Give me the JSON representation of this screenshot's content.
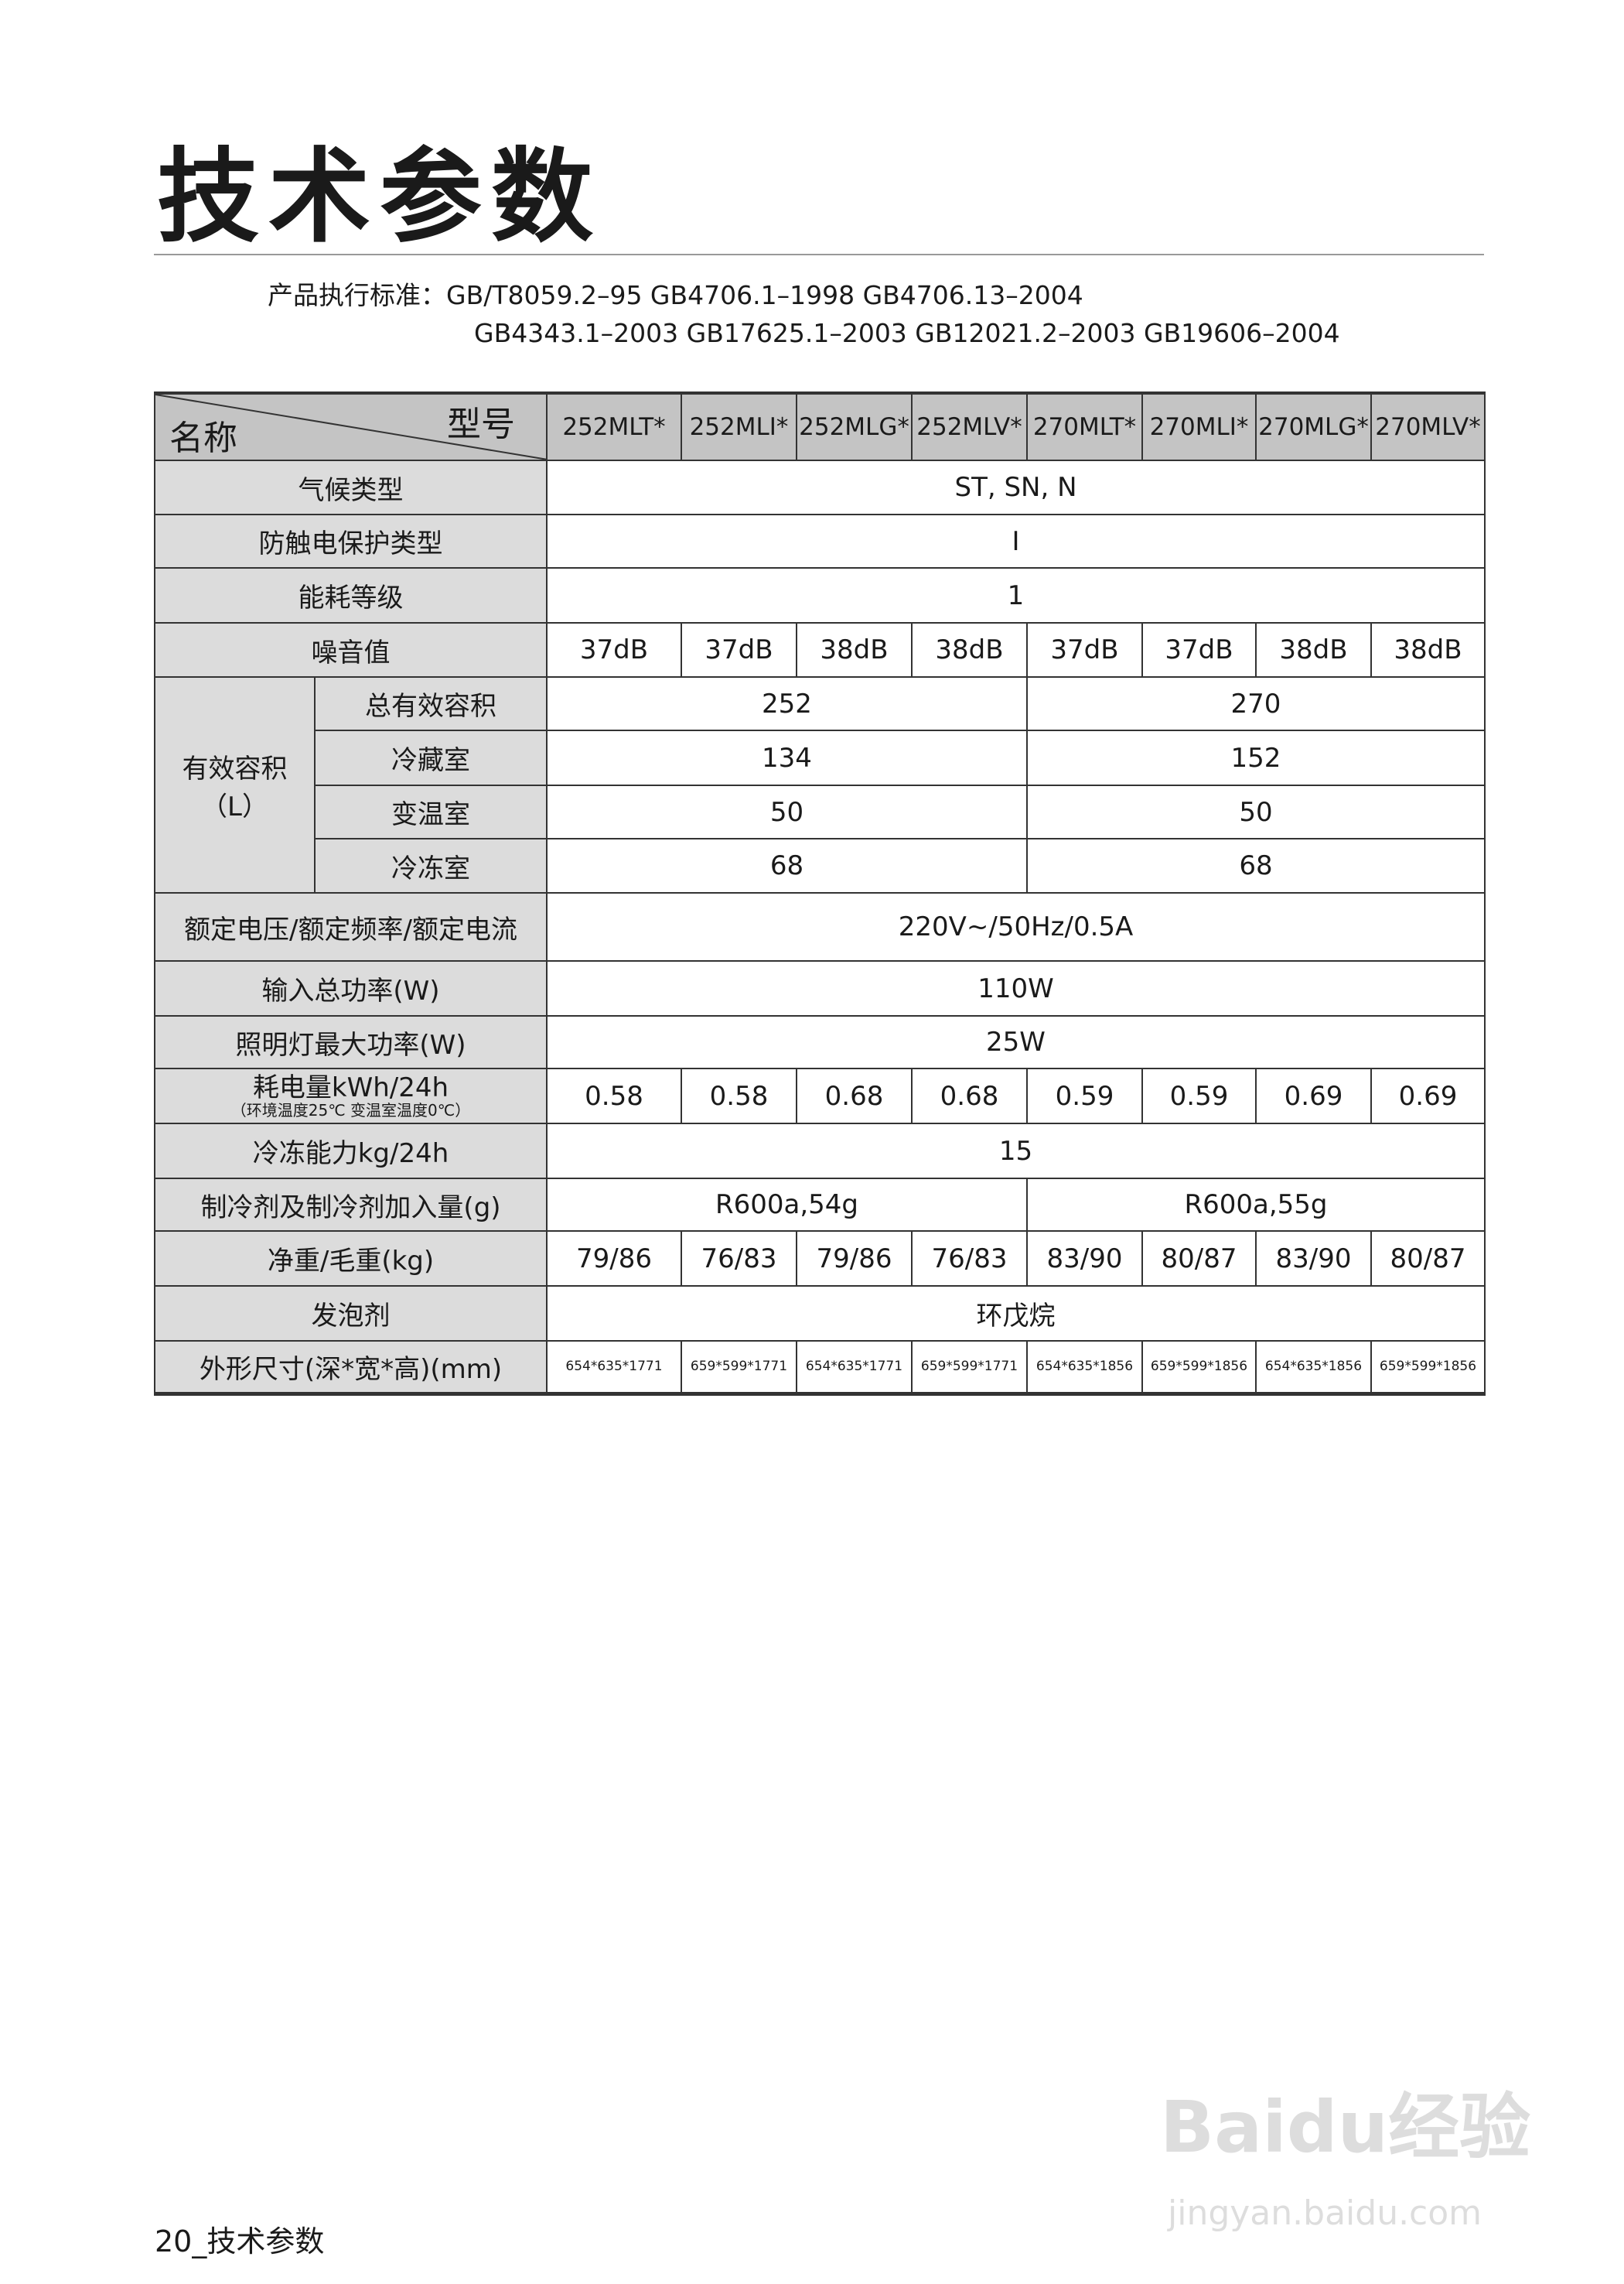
{
  "title": "技术参数",
  "standards": {
    "line1": "产品执行标准：GB/T8059.2–95  GB4706.1–1998 GB4706.13–2004",
    "line2": "GB4343.1–2003  GB17625.1–2003 GB12021.2–2003 GB19606–2004"
  },
  "table": {
    "corner_top": "型号",
    "corner_bottom": "名称",
    "models": [
      "252MLT*",
      "252MLI*",
      "252MLG*",
      "252MLV*",
      "270MLT*",
      "270MLI*",
      "270MLG*",
      "270MLV*"
    ],
    "climate": {
      "label": "气候类型",
      "value": "ST, SN, N"
    },
    "shock": {
      "label": "防触电保护类型",
      "value": "I"
    },
    "energy_grade": {
      "label": "能耗等级",
      "value": "1"
    },
    "noise": {
      "label": "噪音值",
      "values": [
        "37dB",
        "37dB",
        "38dB",
        "38dB",
        "37dB",
        "37dB",
        "38dB",
        "38dB"
      ]
    },
    "volume": {
      "label": "有效容积",
      "unit": "（L）",
      "rows": [
        {
          "label": "总有效容积",
          "v252": "252",
          "v270": "270"
        },
        {
          "label": "冷藏室",
          "v252": "134",
          "v270": "152"
        },
        {
          "label": "变温室",
          "v252": "50",
          "v270": "50"
        },
        {
          "label": "冷冻室",
          "v252": "68",
          "v270": "68"
        }
      ]
    },
    "rated": {
      "label": "额定电压/额定频率/额定电流",
      "value": "220V~/50Hz/0.5A"
    },
    "input_power": {
      "label": "输入总功率(W)",
      "value": "110W"
    },
    "lamp_power": {
      "label": "照明灯最大功率(W)",
      "value": "25W"
    },
    "consumption": {
      "label": "耗电量kWh/24h",
      "note": "（环境温度25℃ 变温室温度0℃）",
      "values": [
        "0.58",
        "0.58",
        "0.68",
        "0.68",
        "0.59",
        "0.59",
        "0.69",
        "0.69"
      ]
    },
    "freezing": {
      "label": "冷冻能力kg/24h",
      "value": "15"
    },
    "refrigerant": {
      "label": "制冷剂及制冷剂加入量(g)",
      "v252": "R600a,54g",
      "v270": "R600a,55g"
    },
    "weight": {
      "label": "净重/毛重(kg)",
      "values": [
        "79/86",
        "76/83",
        "79/86",
        "76/83",
        "83/90",
        "80/87",
        "83/90",
        "80/87"
      ]
    },
    "foaming": {
      "label": "发泡剂",
      "value": "环戊烷"
    },
    "dimensions": {
      "label": "外形尺寸(深*宽*高)(mm)",
      "values": [
        "654*635*1771",
        "659*599*1771",
        "654*635*1771",
        "659*599*1771",
        "654*635*1856",
        "659*599*1856",
        "654*635*1856",
        "659*599*1856"
      ]
    }
  },
  "footer": "20_技术参数",
  "watermark": {
    "brand": "Baidu经验",
    "url": "jingyan.baidu.com"
  }
}
